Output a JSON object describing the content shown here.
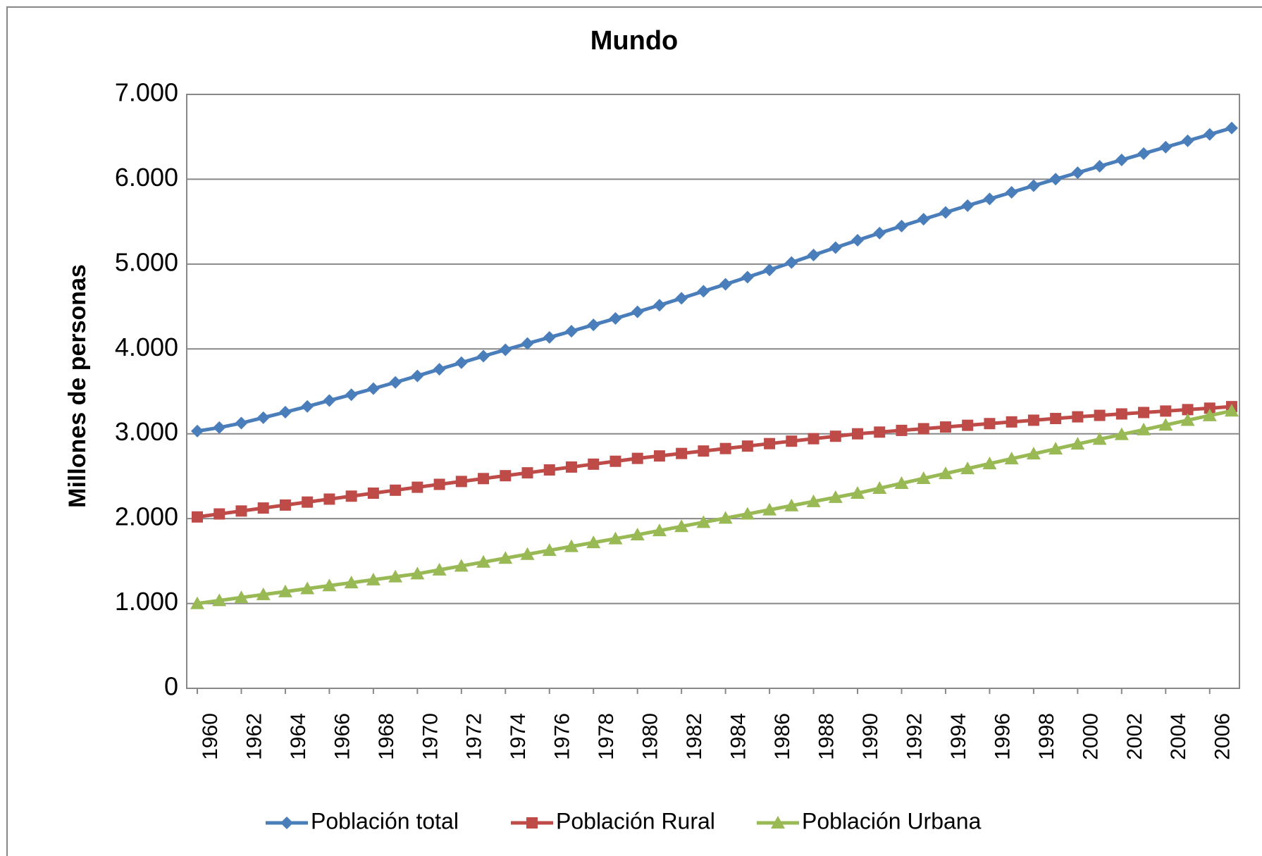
{
  "chart_data": {
    "type": "line",
    "title": "Mundo",
    "y_label": "Millones de personas",
    "categories": [
      "1960",
      null,
      "1962",
      null,
      "1964",
      null,
      "1966",
      null,
      "1968",
      null,
      "1970",
      null,
      "1972",
      null,
      "1974",
      null,
      "1976",
      null,
      "1978",
      null,
      "1980",
      null,
      "1982",
      null,
      "1984",
      null,
      "1986",
      null,
      "1988",
      null,
      "1990",
      null,
      "1992",
      null,
      "1994",
      null,
      "1996",
      null,
      "1998",
      null,
      "2000",
      null,
      "2002",
      null,
      "2004",
      null,
      "2006",
      null
    ],
    "series": [
      {
        "name": "Población total",
        "color": "#4a7ebb",
        "marker": "diamond",
        "values": [
          3032,
          3073,
          3126,
          3190,
          3255,
          3322,
          3392,
          3461,
          3532,
          3606,
          3682,
          3761,
          3838,
          3915,
          3990,
          4064,
          4136,
          4209,
          4284,
          4359,
          4437,
          4515,
          4597,
          4680,
          4762,
          4846,
          4931,
          5019,
          5107,
          5194,
          5281,
          5365,
          5448,
          5529,
          5609,
          5689,
          5768,
          5846,
          5924,
          6001,
          6077,
          6153,
          6228,
          6303,
          6378,
          6453,
          6529,
          6604
        ]
      },
      {
        "name": "Población Rural",
        "color": "#be4b48",
        "marker": "square",
        "values": [
          2020,
          2055,
          2090,
          2125,
          2160,
          2195,
          2230,
          2265,
          2300,
          2335,
          2370,
          2404,
          2438,
          2472,
          2506,
          2540,
          2574,
          2608,
          2642,
          2676,
          2710,
          2739,
          2768,
          2797,
          2826,
          2855,
          2884,
          2913,
          2942,
          2971,
          3000,
          3020,
          3040,
          3060,
          3080,
          3100,
          3120,
          3140,
          3160,
          3180,
          3200,
          3217,
          3234,
          3251,
          3268,
          3285,
          3302,
          3320
        ]
      },
      {
        "name": "Población Urbana",
        "color": "#98b954",
        "marker": "triangle",
        "values": [
          1000,
          1035,
          1070,
          1105,
          1140,
          1175,
          1210,
          1245,
          1280,
          1315,
          1350,
          1396,
          1442,
          1488,
          1534,
          1580,
          1626,
          1672,
          1718,
          1764,
          1810,
          1859,
          1908,
          1957,
          2006,
          2055,
          2104,
          2153,
          2202,
          2251,
          2300,
          2358,
          2416,
          2474,
          2532,
          2590,
          2648,
          2706,
          2764,
          2822,
          2880,
          2936,
          2992,
          3048,
          3104,
          3160,
          3215,
          3270
        ]
      }
    ],
    "ylim": [
      0,
      7000
    ],
    "yticks": [
      0,
      {
        "value": 1000,
        "label": "1.000"
      },
      {
        "value": 2000,
        "label": "2.000"
      },
      {
        "value": 3000,
        "label": "3.000"
      },
      {
        "value": 4000,
        "label": "4.000"
      },
      {
        "value": 5000,
        "label": "5.000"
      },
      {
        "value": 6000,
        "label": "6.000"
      },
      {
        "value": 7000,
        "label": "7.000"
      }
    ],
    "grid": true,
    "legend": "bottom"
  }
}
